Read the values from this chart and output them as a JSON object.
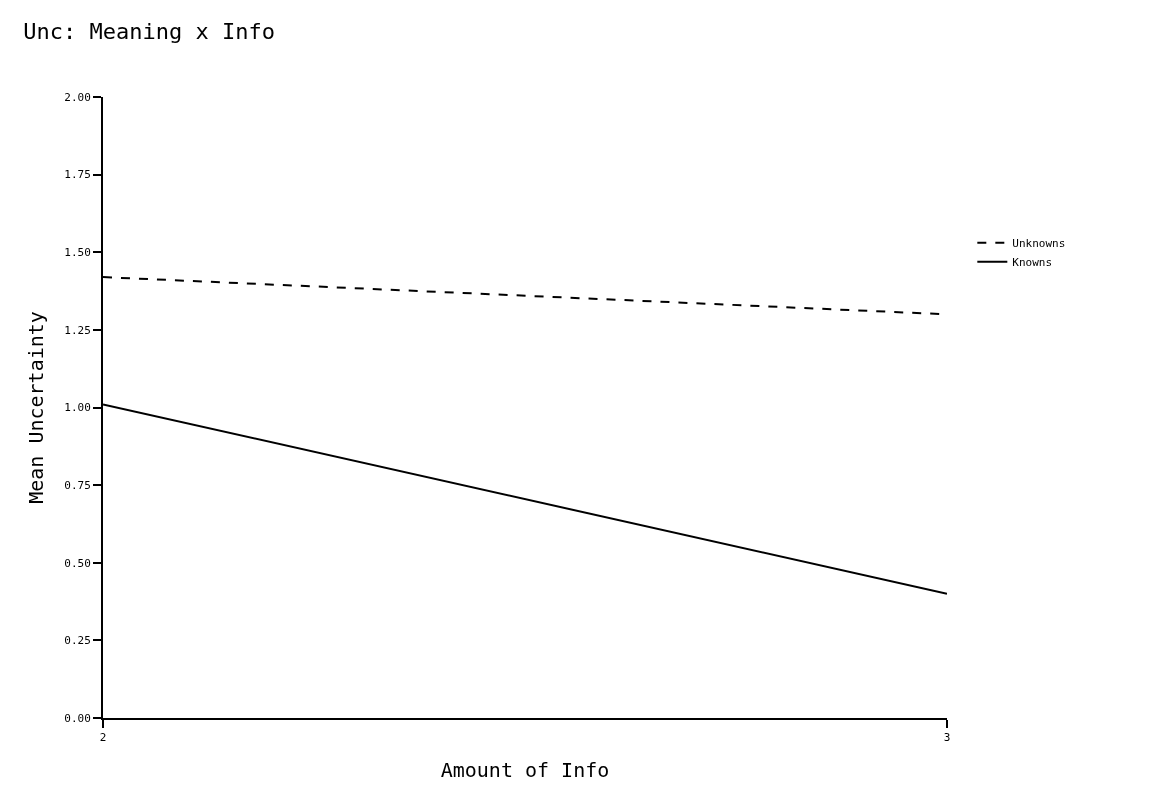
{
  "chart_data": {
    "type": "line",
    "title": "Unc: Meaning x Info",
    "xlabel": "Amount of Info",
    "ylabel": "Mean Uncertainty",
    "x": [
      2,
      3
    ],
    "series": [
      {
        "name": "Unknowns",
        "color": "#000000",
        "line_style": "dashed",
        "values": [
          1.42,
          1.3
        ]
      },
      {
        "name": "Knowns",
        "color": "#000000",
        "line_style": "solid",
        "values": [
          1.01,
          0.4
        ]
      }
    ],
    "xlim": [
      2,
      3
    ],
    "xticks": [
      2,
      3
    ],
    "ylim": [
      0,
      2
    ],
    "yticks": [
      {
        "value": 0,
        "label": "0.00"
      },
      {
        "value": 0.25,
        "label": "0.25"
      },
      {
        "value": 0.5,
        "label": "0.50"
      },
      {
        "value": 0.75,
        "label": "0.75"
      },
      {
        "value": 1,
        "label": "1.00"
      },
      {
        "value": 1.25,
        "label": "1.25"
      },
      {
        "value": 1.5,
        "label": "1.50"
      },
      {
        "value": 1.75,
        "label": "1.75"
      },
      {
        "value": 2,
        "label": "2.00"
      }
    ],
    "grid": false,
    "legend": "right",
    "marker": "none"
  }
}
